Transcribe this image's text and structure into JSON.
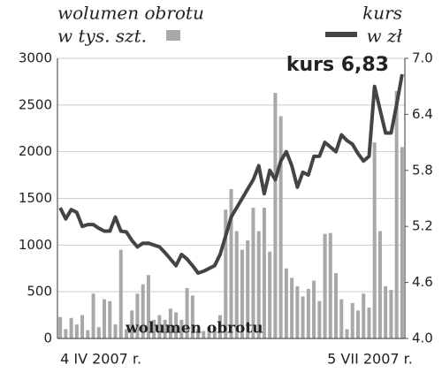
{
  "chart_data": {
    "type": "bar-line",
    "categories": [
      "4 IV 2007 r.",
      null,
      null,
      null,
      null,
      null,
      null,
      null,
      null,
      null,
      null,
      null,
      null,
      null,
      null,
      null,
      null,
      null,
      null,
      null,
      null,
      null,
      null,
      null,
      null,
      null,
      null,
      null,
      null,
      null,
      null,
      null,
      null,
      null,
      null,
      null,
      null,
      null,
      null,
      null,
      null,
      null,
      null,
      null,
      null,
      null,
      null,
      null,
      null,
      null,
      null,
      null,
      null,
      null,
      null,
      null,
      null,
      null,
      null,
      null,
      null,
      null,
      "5 VII 2007 r."
    ],
    "series": [
      {
        "name": "wolumen obrotu",
        "unit": "w tys. szt.",
        "color": "#a8a8a8",
        "values": [
          230,
          100,
          220,
          150,
          250,
          90,
          480,
          120,
          420,
          400,
          150,
          950,
          100,
          300,
          480,
          580,
          680,
          200,
          250,
          200,
          320,
          280,
          200,
          540,
          460,
          100,
          80,
          120,
          120,
          250,
          1380,
          1600,
          1150,
          950,
          1050,
          1400,
          1150,
          1400,
          930,
          2630,
          2380,
          750,
          650,
          560,
          450,
          530,
          620,
          400,
          1120,
          1130,
          700,
          420,
          100,
          380,
          300,
          480,
          330,
          2100,
          1150,
          560,
          520,
          2650,
          2050
        ]
      },
      {
        "name": "kurs",
        "unit": "w zł",
        "color": "#444444",
        "axis": "y2",
        "values": [
          5.4,
          5.28,
          5.38,
          5.35,
          5.2,
          5.22,
          5.22,
          5.18,
          5.15,
          5.15,
          5.3,
          5.15,
          5.14,
          5.05,
          4.98,
          5.02,
          5.02,
          5.0,
          4.98,
          4.92,
          4.85,
          4.78,
          4.9,
          4.85,
          4.78,
          4.7,
          4.72,
          4.75,
          4.78,
          4.9,
          5.1,
          5.3,
          5.4,
          5.5,
          5.6,
          5.7,
          5.85,
          5.55,
          5.8,
          5.7,
          5.9,
          6.0,
          5.85,
          5.62,
          5.78,
          5.75,
          5.95,
          5.95,
          6.1,
          6.05,
          6.0,
          6.18,
          6.12,
          6.08,
          5.98,
          5.9,
          5.95,
          6.7,
          6.45,
          6.2,
          6.2,
          6.5,
          6.83
        ]
      }
    ],
    "ylim": [
      0,
      3000
    ],
    "yticks": [
      0,
      500,
      1000,
      1500,
      2000,
      2500,
      3000
    ],
    "y2lim": [
      4.0,
      7.0
    ],
    "y2ticks": [
      {
        "value": 4.0,
        "label": "4.0"
      },
      4.6,
      5.2,
      5.8,
      6.4,
      {
        "value": 7.0,
        "label": "7.0"
      }
    ],
    "grid": true,
    "annotations": [
      "kurs 6,83",
      "wolumen obrotu"
    ]
  }
}
